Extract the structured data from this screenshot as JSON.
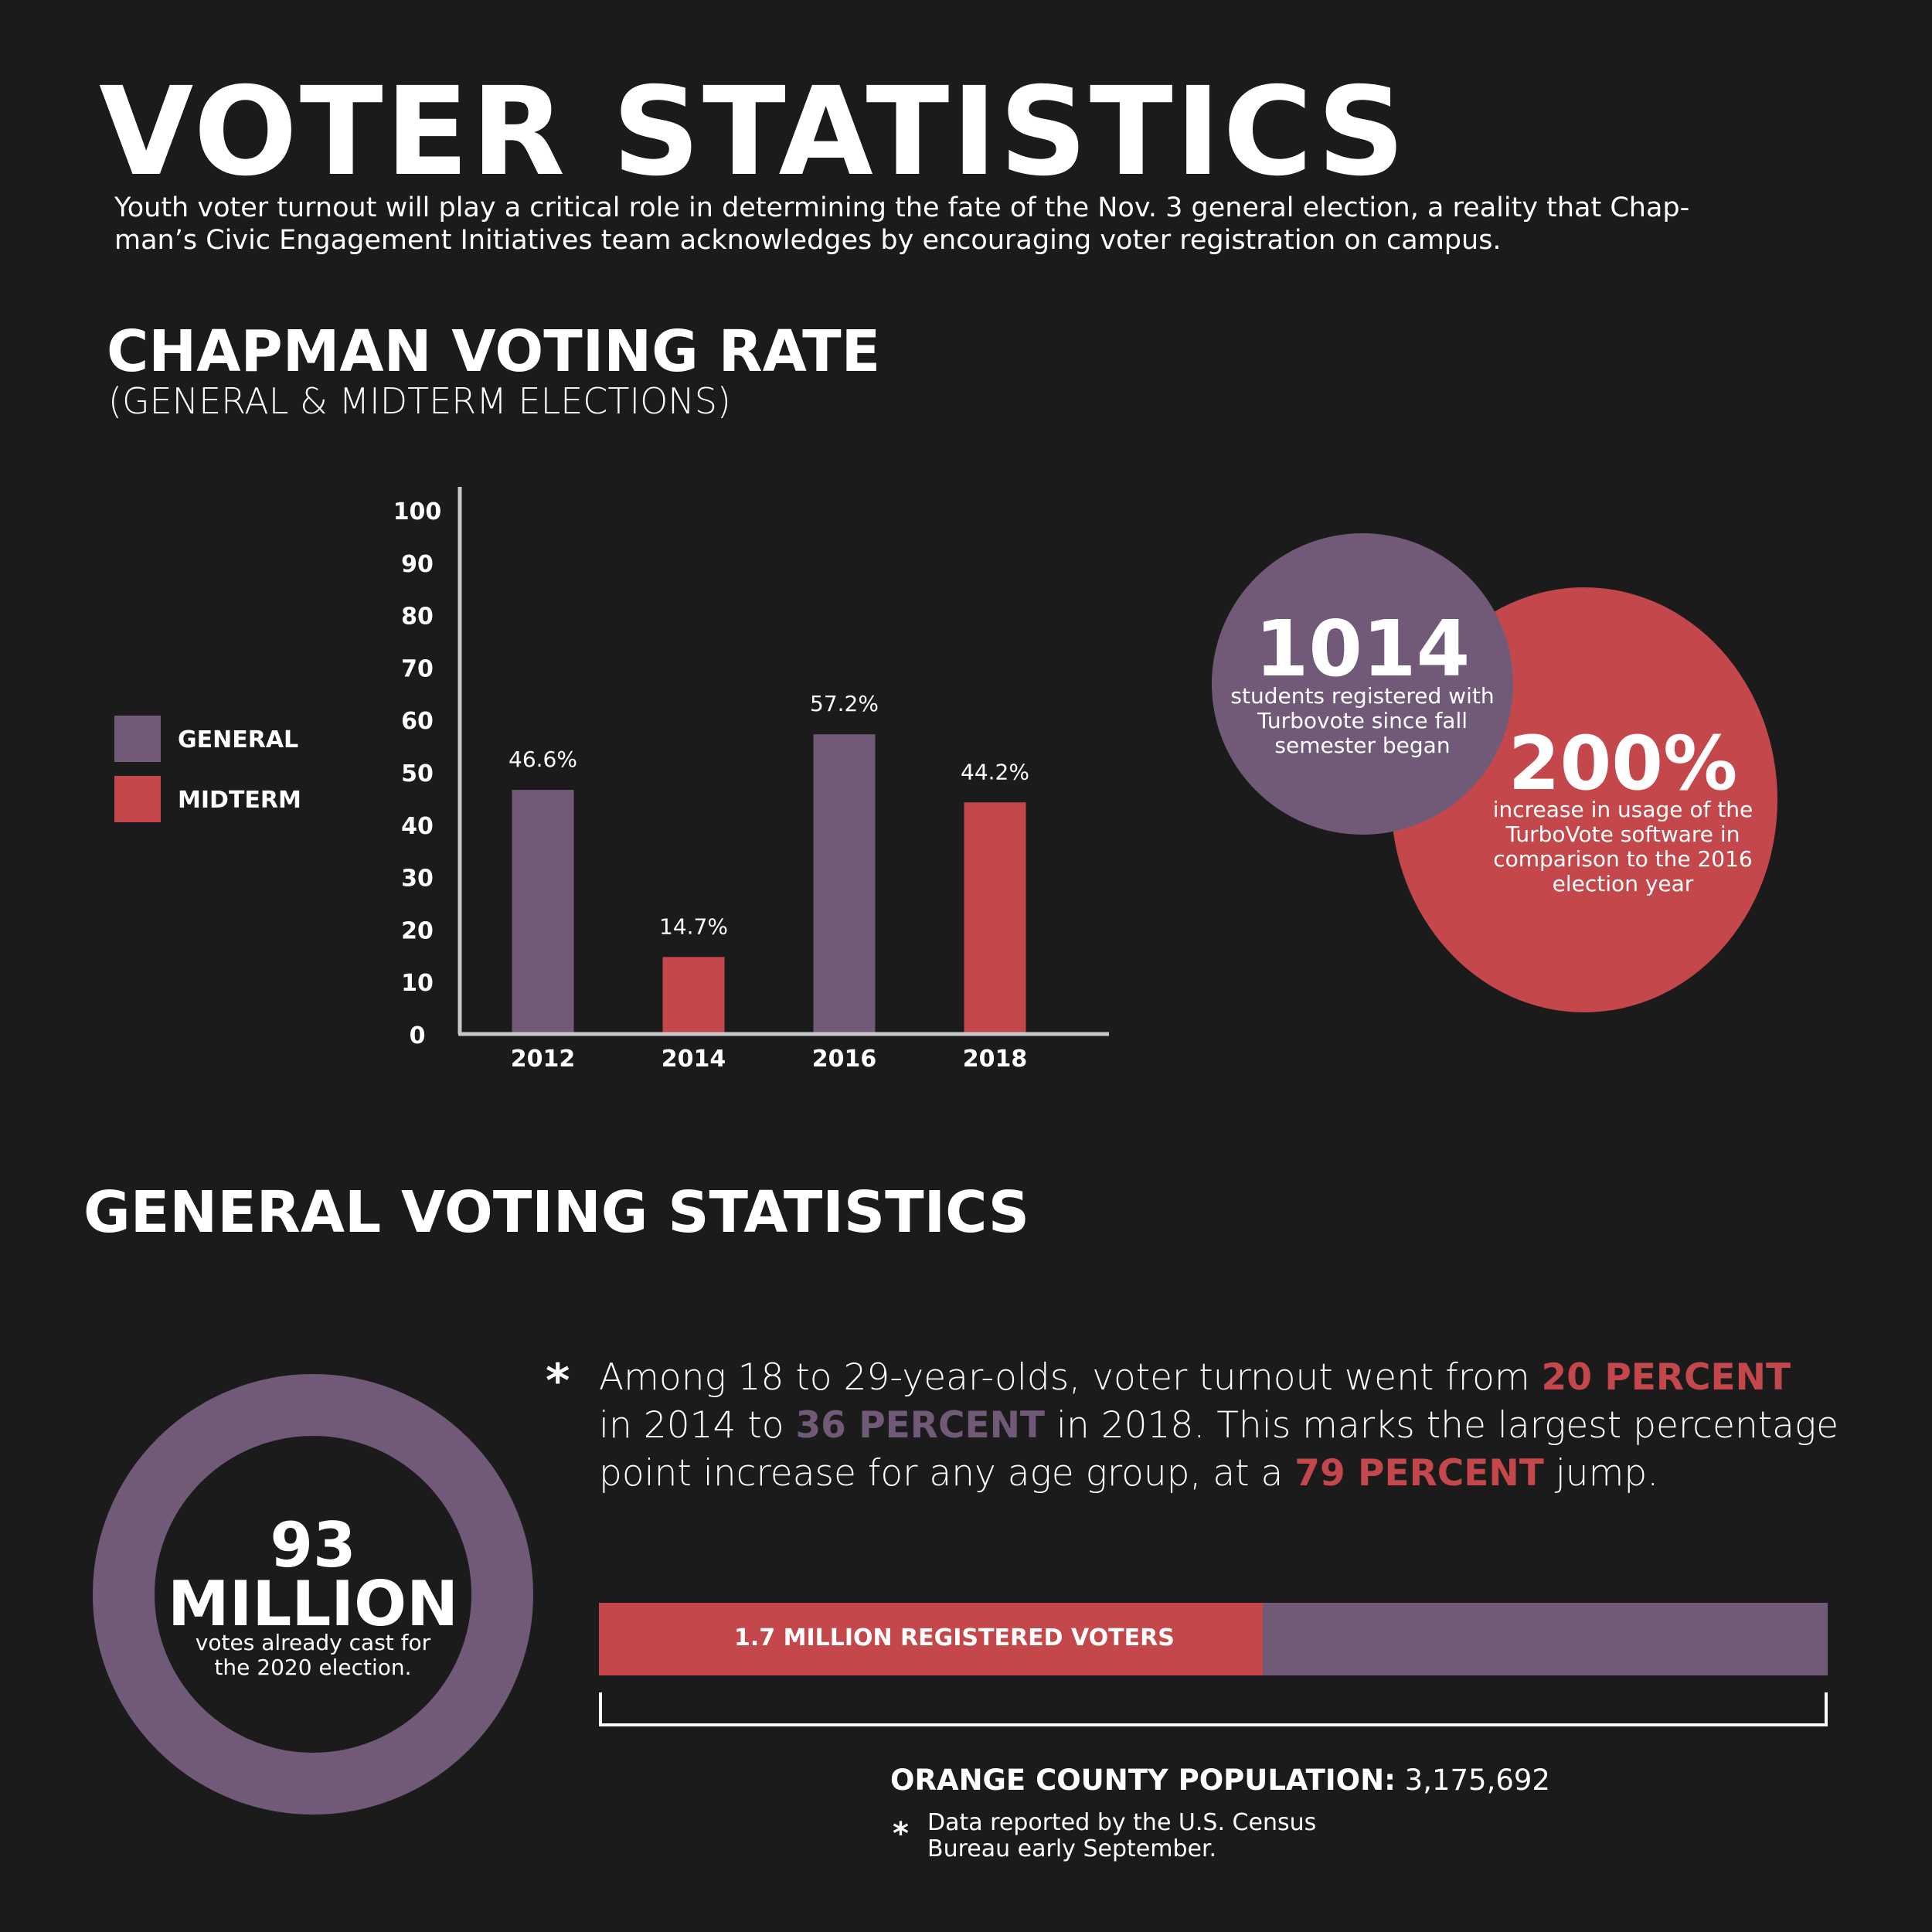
{
  "header": {
    "title": "VOTER STATISTICS",
    "intro_line1": "Youth voter turnout will play a critical role in determining the fate of the Nov. 3 general election, a reality that Chap-",
    "intro_line2": "man’s Civic Engagement Initiatives team acknowledges by encouraging voter registration on campus."
  },
  "colors": {
    "background": "#1c1b1c",
    "general": "#715a78",
    "midterm": "#c4484b",
    "axis": "#c8c8c8"
  },
  "voting_rate": {
    "heading": "CHAPMAN VOTING RATE",
    "subheading": "(GENERAL & MIDTERM ELECTIONS)",
    "legend": [
      {
        "label": "GENERAL",
        "color": "#715a78"
      },
      {
        "label": "MIDTERM",
        "color": "#c4484b"
      }
    ]
  },
  "chart_data": {
    "type": "bar",
    "title": "",
    "categories": [
      "2012",
      "2014",
      "2016",
      "2018"
    ],
    "values": [
      46.6,
      14.7,
      57.2,
      44.2
    ],
    "value_labels": [
      "46.6%",
      "14.7%",
      "57.2%",
      "44.2%"
    ],
    "series_type": [
      "GENERAL",
      "MIDTERM",
      "GENERAL",
      "MIDTERM"
    ],
    "legend": [
      "GENERAL",
      "MIDTERM"
    ],
    "legend_position": "left",
    "ylim": [
      0,
      100
    ],
    "yticks": [
      0,
      10,
      20,
      30,
      40,
      50,
      60,
      70,
      80,
      90,
      100
    ],
    "xlabel": "",
    "ylabel": "",
    "grid": false
  },
  "bubbles": {
    "students_number": "1014",
    "students_text_1": "students registered with",
    "students_text_2": "Turbovote since fall",
    "students_text_3": "semester began",
    "increase_number": "200%",
    "increase_text_1": "increase in usage of the",
    "increase_text_2": "TurboVote software in",
    "increase_text_3": "comparison to the 2016",
    "increase_text_4": "election year"
  },
  "general_stats": {
    "heading": "GENERAL VOTING STATISTICS",
    "ring_number": "93",
    "ring_unit": "MILLION",
    "ring_text_1": "votes already cast for",
    "ring_text_2": "the 2020 election.",
    "asterisk": "*",
    "line1_a": "Among 18 to 29-year-olds, voter turnout went from ",
    "line1_hl": "20 PERCENT",
    "line2_a": "in 2014 to ",
    "line2_hl": "36 PERCENT",
    "line2_b": " in 2018. This marks the largest percentage",
    "line3_a": "point increase for any age group, at a ",
    "line3_hl": "79 PERCENT",
    "line3_b": " jump.",
    "registered_label": "1.7 MILLION REGISTERED VOTERS",
    "registered_fraction": 0.54,
    "population_label": "ORANGE COUNTY POPULATION:",
    "population_value": " 3,175,692",
    "note_1": "Data reported by the U.S. Census",
    "note_2": "Bureau early September."
  }
}
